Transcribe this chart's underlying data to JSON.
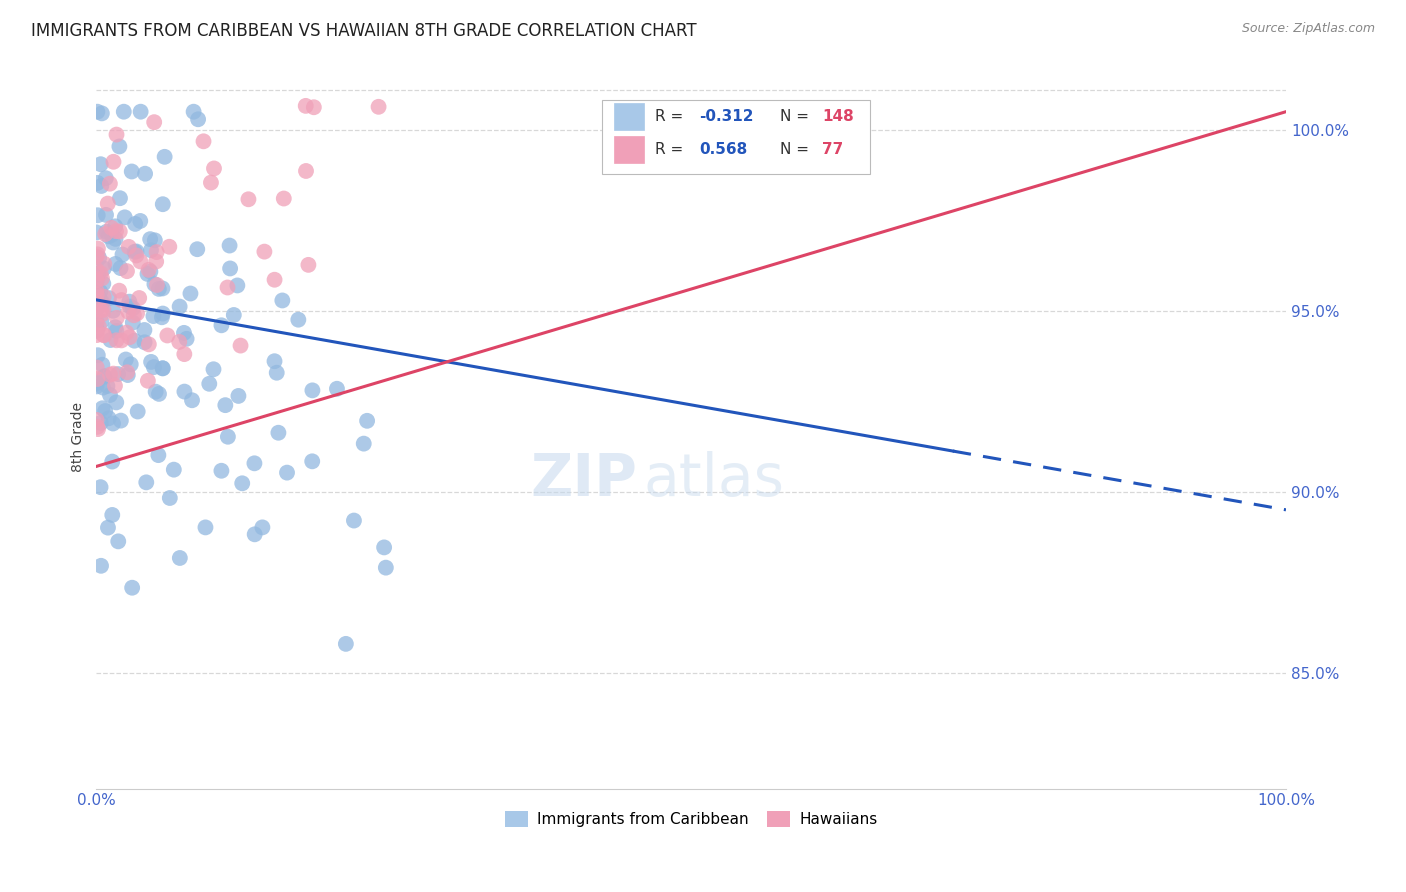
{
  "title": "IMMIGRANTS FROM CARIBBEAN VS HAWAIIAN 8TH GRADE CORRELATION CHART",
  "source": "Source: ZipAtlas.com",
  "ylabel": "8th Grade",
  "watermark_zip": "ZIP",
  "watermark_atlas": "atlas",
  "xmin": 0.0,
  "xmax": 1.0,
  "ymin": 0.818,
  "ymax": 1.012,
  "yticks": [
    0.85,
    0.9,
    0.95,
    1.0
  ],
  "ytick_labels": [
    "85.0%",
    "90.0%",
    "95.0%",
    "100.0%"
  ],
  "xtick_labels": [
    "0.0%",
    "100.0%"
  ],
  "background_color": "#ffffff",
  "grid_color": "#d8d8d8",
  "blue_scatter_color": "#92b8df",
  "pink_scatter_color": "#f0a0b8",
  "blue_line_color": "#2255bb",
  "pink_line_color": "#dd4466",
  "tick_color": "#4466cc",
  "title_fontsize": 12,
  "axis_label_fontsize": 10,
  "tick_fontsize": 11,
  "watermark_fontsize_zip": 42,
  "watermark_fontsize_atlas": 42,
  "N_blue": 148,
  "N_pink": 77,
  "R_blue": -0.312,
  "R_pink": 0.568,
  "blue_line_x0": 0.0,
  "blue_line_y0": 0.953,
  "blue_line_x1": 1.0,
  "blue_line_y1": 0.895,
  "blue_line_solid_x1": 0.72,
  "pink_line_x0": 0.0,
  "pink_line_y0": 0.907,
  "pink_line_x1": 1.0,
  "pink_line_y1": 1.005,
  "legend_R_color": "#2255bb",
  "legend_N_color": "#dd4466"
}
